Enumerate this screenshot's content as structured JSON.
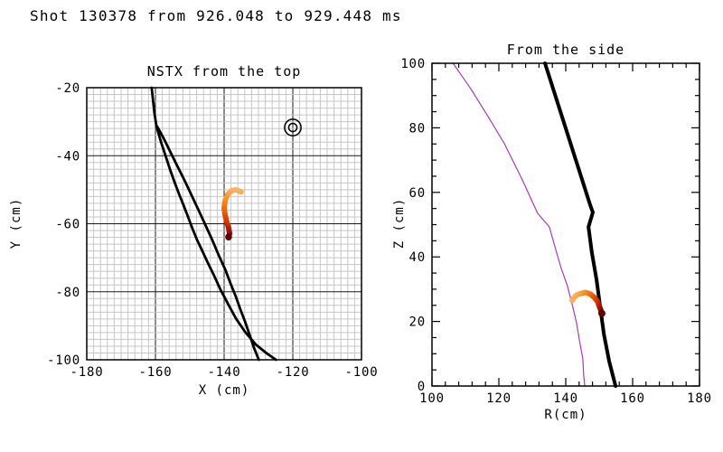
{
  "title": "Shot 130378 from 926.048 to 929.448 ms",
  "trajectory_colors": [
    "#FFB066",
    "#F8921C",
    "#ED5F0B",
    "#D03406",
    "#9C1203",
    "#5F0000"
  ],
  "chart_data": [
    {
      "type": "line",
      "title": "NSTX from the top",
      "xlabel": "X (cm)",
      "ylabel": "Y (cm)",
      "xlim": [
        -180,
        -100
      ],
      "ylim": [
        -100,
        -20
      ],
      "xticks": [
        -180,
        -160,
        -140,
        -120,
        -100
      ],
      "yticks": [
        -100,
        -80,
        -60,
        -40,
        -20
      ],
      "grid": {
        "minor": 2,
        "major": 20,
        "minor_color": "#c6c6c6",
        "major_color": "#1a1a1a"
      },
      "marker": {
        "name": "port-target-marker",
        "x": -120,
        "y": -31.7,
        "radii": [
          2.4,
          1.2
        ],
        "color": "#000000"
      },
      "series": [
        {
          "name": "antenna-outline-a",
          "color": "#000000",
          "width": 2.8,
          "points": [
            [
              -161.1,
              -20
            ],
            [
              -160.3,
              -27.4
            ],
            [
              -159.7,
              -31.4
            ],
            [
              -158.4,
              -35.9
            ],
            [
              -157.1,
              -39.9
            ],
            [
              -155.8,
              -43.9
            ],
            [
              -154.5,
              -47.6
            ],
            [
              -153.2,
              -51.1
            ],
            [
              -151.8,
              -54.6
            ],
            [
              -150.5,
              -58
            ],
            [
              -149.2,
              -61.5
            ],
            [
              -147.9,
              -64.7
            ],
            [
              -146.3,
              -68.1
            ],
            [
              -144.7,
              -71.6
            ],
            [
              -142.9,
              -75.3
            ],
            [
              -141.1,
              -79.3
            ],
            [
              -138.9,
              -83.5
            ],
            [
              -136.6,
              -87.8
            ],
            [
              -133.9,
              -91.8
            ],
            [
              -130.8,
              -95.5
            ],
            [
              -127.6,
              -98.1
            ],
            [
              -124.9,
              -100
            ]
          ]
        },
        {
          "name": "antenna-outline-b",
          "color": "#000000",
          "width": 2.8,
          "points": [
            [
              -159.5,
              -31.4
            ],
            [
              -157.6,
              -34.9
            ],
            [
              -155.8,
              -38.6
            ],
            [
              -153.7,
              -42.9
            ],
            [
              -151.6,
              -47.1
            ],
            [
              -149.5,
              -51.6
            ],
            [
              -147.4,
              -56.1
            ],
            [
              -145.3,
              -60.7
            ],
            [
              -143.4,
              -64.9
            ],
            [
              -141.6,
              -69.2
            ],
            [
              -139.7,
              -73.4
            ],
            [
              -138.2,
              -77.4
            ],
            [
              -136.6,
              -81.4
            ],
            [
              -135.3,
              -85.1
            ],
            [
              -133.9,
              -88.8
            ],
            [
              -132.6,
              -92.6
            ],
            [
              -131.3,
              -96.5
            ],
            [
              -129.9,
              -100
            ]
          ]
        },
        {
          "name": "dust-trajectory-top",
          "gradient": true,
          "width": 6,
          "end_dot": 3.8,
          "points": [
            [
              -135.0,
              -50.6
            ],
            [
              -136.6,
              -50.0
            ],
            [
              -137.9,
              -50.3
            ],
            [
              -139.0,
              -51.4
            ],
            [
              -139.7,
              -53.2
            ],
            [
              -140.0,
              -55.4
            ],
            [
              -139.7,
              -57.5
            ],
            [
              -139.2,
              -59.6
            ],
            [
              -138.7,
              -61.2
            ],
            [
              -138.4,
              -62.8
            ],
            [
              -138.7,
              -63.9
            ]
          ]
        }
      ]
    },
    {
      "type": "line",
      "title": "From the side",
      "xlabel": "R(cm)",
      "ylabel": "Z (cm)",
      "xlim": [
        100,
        180
      ],
      "ylim": [
        0,
        100
      ],
      "xticks": [
        100,
        120,
        140,
        160,
        180
      ],
      "yticks": [
        0,
        20,
        40,
        60,
        80,
        100
      ],
      "ticks": {
        "xminor": 4,
        "yminor": 5,
        "major_len": 9,
        "minor_len": 5
      },
      "series": [
        {
          "name": "vessel-wall",
          "color": "#A040B0",
          "width": 1.2,
          "points": [
            [
              106.3,
              100
            ],
            [
              111.6,
              92.1
            ],
            [
              117.0,
              83.1
            ],
            [
              121.6,
              75.2
            ],
            [
              127.0,
              63.9
            ],
            [
              131.6,
              53.5
            ],
            [
              135.1,
              49.3
            ],
            [
              137.0,
              42.3
            ],
            [
              138.6,
              36.6
            ],
            [
              140.5,
              31.0
            ],
            [
              141.9,
              25.4
            ],
            [
              143.2,
              19.7
            ],
            [
              144.1,
              14.1
            ],
            [
              145.1,
              8.5
            ],
            [
              145.4,
              2.8
            ],
            [
              145.7,
              0
            ]
          ]
        },
        {
          "name": "antenna-profile",
          "color": "#000000",
          "width": 4,
          "points": [
            [
              133.8,
              100
            ],
            [
              147.3,
              56.1
            ],
            [
              148.1,
              53.8
            ],
            [
              146.8,
              49.3
            ],
            [
              147.8,
              41.4
            ],
            [
              149.2,
              33.0
            ],
            [
              150.3,
              24.5
            ],
            [
              151.4,
              16.1
            ],
            [
              153.0,
              7.6
            ],
            [
              154.9,
              0
            ]
          ]
        },
        {
          "name": "dust-trajectory-side",
          "gradient": true,
          "width": 6,
          "end_dot": 4,
          "points": [
            [
              141.9,
              26.5
            ],
            [
              142.4,
              27.3
            ],
            [
              143.2,
              28.2
            ],
            [
              144.6,
              28.7
            ],
            [
              145.9,
              29.0
            ],
            [
              147.3,
              28.5
            ],
            [
              148.4,
              27.6
            ],
            [
              149.5,
              26.2
            ],
            [
              150.0,
              24.8
            ],
            [
              150.5,
              23.4
            ],
            [
              150.8,
              22.5
            ]
          ]
        }
      ]
    }
  ]
}
